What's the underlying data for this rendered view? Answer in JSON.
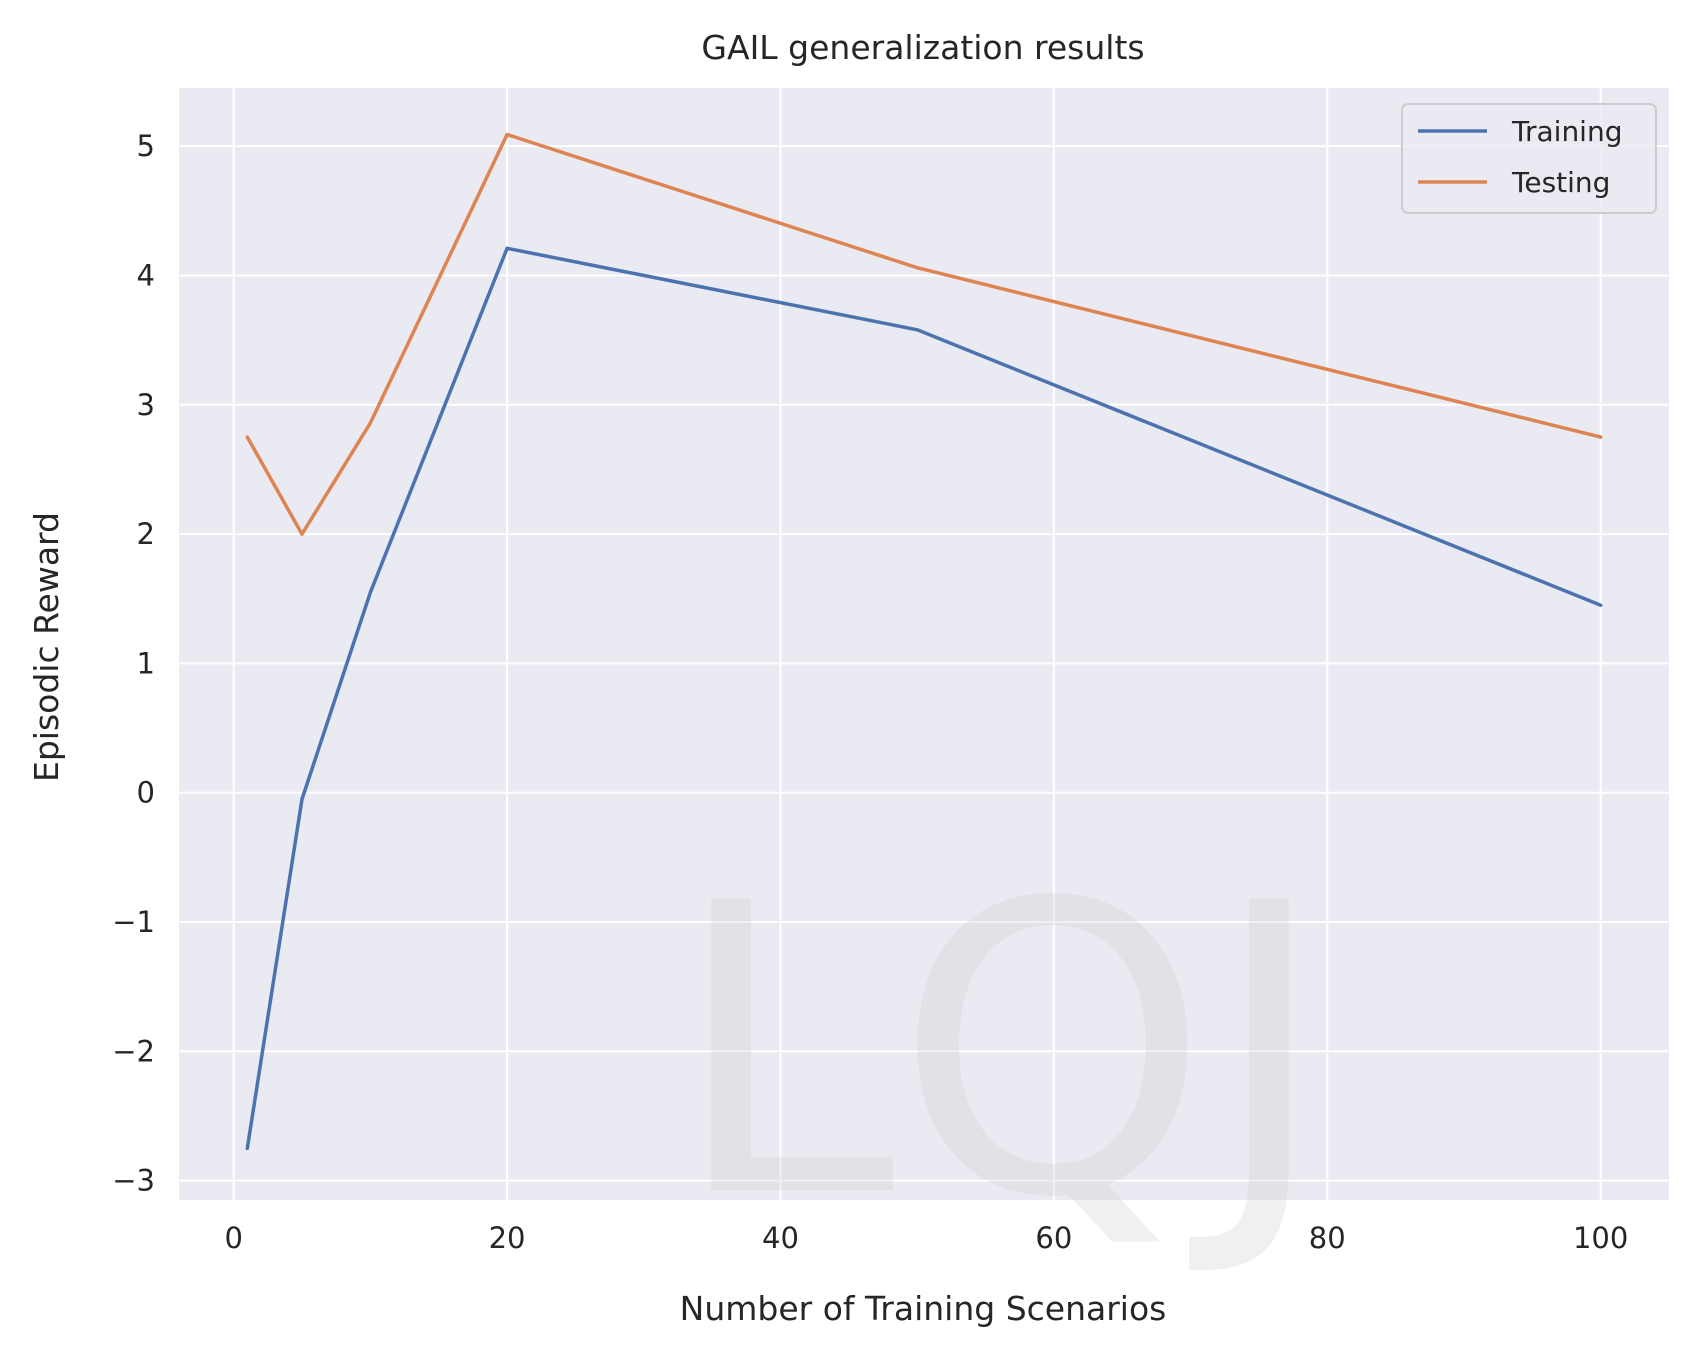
{
  "chart_data": {
    "type": "line",
    "title": "GAIL generalization results",
    "xlabel": "Number of Training Scenarios",
    "ylabel": "Episodic Reward",
    "xlim": [
      -4,
      105
    ],
    "ylim": [
      -3.15,
      5.45
    ],
    "xticks": [
      0,
      20,
      40,
      60,
      80,
      100
    ],
    "yticks": [
      -3,
      -2,
      -1,
      0,
      1,
      2,
      3,
      4,
      5
    ],
    "x": [
      1,
      5,
      10,
      20,
      50,
      100
    ],
    "series": [
      {
        "name": "Training",
        "color": "#4c72b0",
        "values": [
          -2.75,
          -0.05,
          1.55,
          4.21,
          3.58,
          1.45
        ]
      },
      {
        "name": "Testing",
        "color": "#dd8452",
        "values": [
          2.75,
          2.0,
          2.86,
          5.09,
          4.06,
          2.75
        ]
      }
    ],
    "grid": true,
    "legend": "top-right",
    "background": "#eaeaf2",
    "grid_color": "#ffffff"
  },
  "watermark": "LQJ"
}
